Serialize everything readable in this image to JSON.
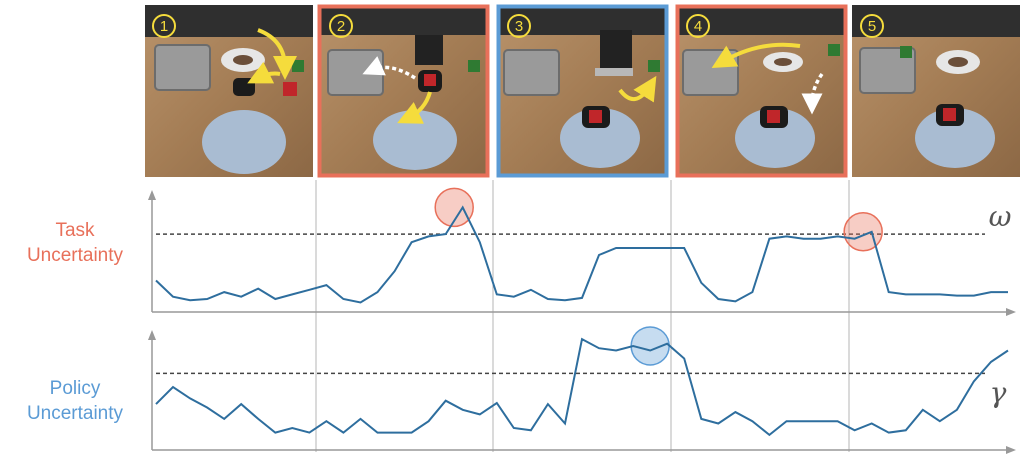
{
  "colors": {
    "task": "#e8705a",
    "policy": "#5b9bd5",
    "line": "#2e6e9e",
    "threshold": "#444444",
    "arrow": "#f5dc3c"
  },
  "frames": [
    {
      "label": "1",
      "border": "none"
    },
    {
      "label": "2",
      "border": "task"
    },
    {
      "label": "3",
      "border": "policy"
    },
    {
      "label": "4",
      "border": "task"
    },
    {
      "label": "5",
      "border": "none"
    }
  ],
  "chart_data": [
    {
      "type": "line",
      "title": "",
      "ylabel": [
        "Task",
        "Uncertainty"
      ],
      "color": "#e8705a",
      "threshold": {
        "symbol": "ω",
        "value": 0.62
      },
      "x": [
        0,
        2,
        4,
        6,
        8,
        10,
        12,
        14,
        16,
        18,
        20,
        22,
        24,
        26,
        28,
        30,
        32,
        34,
        36,
        38,
        40,
        42,
        44,
        46,
        48,
        50,
        52,
        54,
        56,
        58,
        60,
        62,
        64,
        66,
        68,
        70,
        72,
        74,
        76,
        78,
        80,
        82,
        84,
        86,
        88,
        90,
        92,
        94,
        96,
        98,
        100
      ],
      "y": [
        0.22,
        0.08,
        0.05,
        0.06,
        0.12,
        0.08,
        0.15,
        0.06,
        0.1,
        0.14,
        0.18,
        0.06,
        0.03,
        0.12,
        0.3,
        0.55,
        0.6,
        0.62,
        0.85,
        0.55,
        0.1,
        0.08,
        0.14,
        0.06,
        0.05,
        0.07,
        0.44,
        0.5,
        0.5,
        0.5,
        0.5,
        0.5,
        0.2,
        0.06,
        0.04,
        0.12,
        0.58,
        0.6,
        0.58,
        0.58,
        0.6,
        0.58,
        0.64,
        0.12,
        0.1,
        0.1,
        0.1,
        0.09,
        0.09,
        0.12,
        0.12
      ],
      "highlights": [
        {
          "x": 35,
          "y": 0.85
        },
        {
          "x": 83,
          "y": 0.64
        }
      ]
    },
    {
      "type": "line",
      "title": "",
      "ylabel": [
        "Policy",
        "Uncertainty"
      ],
      "color": "#5b9bd5",
      "threshold": {
        "symbol": "γ",
        "value": 0.62
      },
      "x": [
        0,
        2,
        4,
        6,
        8,
        10,
        12,
        14,
        16,
        18,
        20,
        22,
        24,
        26,
        28,
        30,
        32,
        34,
        36,
        38,
        40,
        42,
        44,
        46,
        48,
        50,
        52,
        54,
        56,
        58,
        60,
        62,
        64,
        66,
        68,
        70,
        72,
        74,
        76,
        78,
        80,
        82,
        84,
        86,
        88,
        90,
        92,
        94,
        96,
        98,
        100
      ],
      "y": [
        0.35,
        0.5,
        0.4,
        0.32,
        0.22,
        0.35,
        0.22,
        0.1,
        0.14,
        0.1,
        0.2,
        0.1,
        0.22,
        0.1,
        0.1,
        0.1,
        0.2,
        0.38,
        0.3,
        0.26,
        0.36,
        0.14,
        0.12,
        0.35,
        0.18,
        0.92,
        0.84,
        0.82,
        0.86,
        0.82,
        0.88,
        0.75,
        0.22,
        0.18,
        0.28,
        0.2,
        0.08,
        0.2,
        0.2,
        0.2,
        0.2,
        0.12,
        0.18,
        0.1,
        0.12,
        0.3,
        0.2,
        0.3,
        0.55,
        0.72,
        0.82
      ],
      "highlights": [
        {
          "x": 58,
          "y": 0.86
        }
      ]
    }
  ]
}
